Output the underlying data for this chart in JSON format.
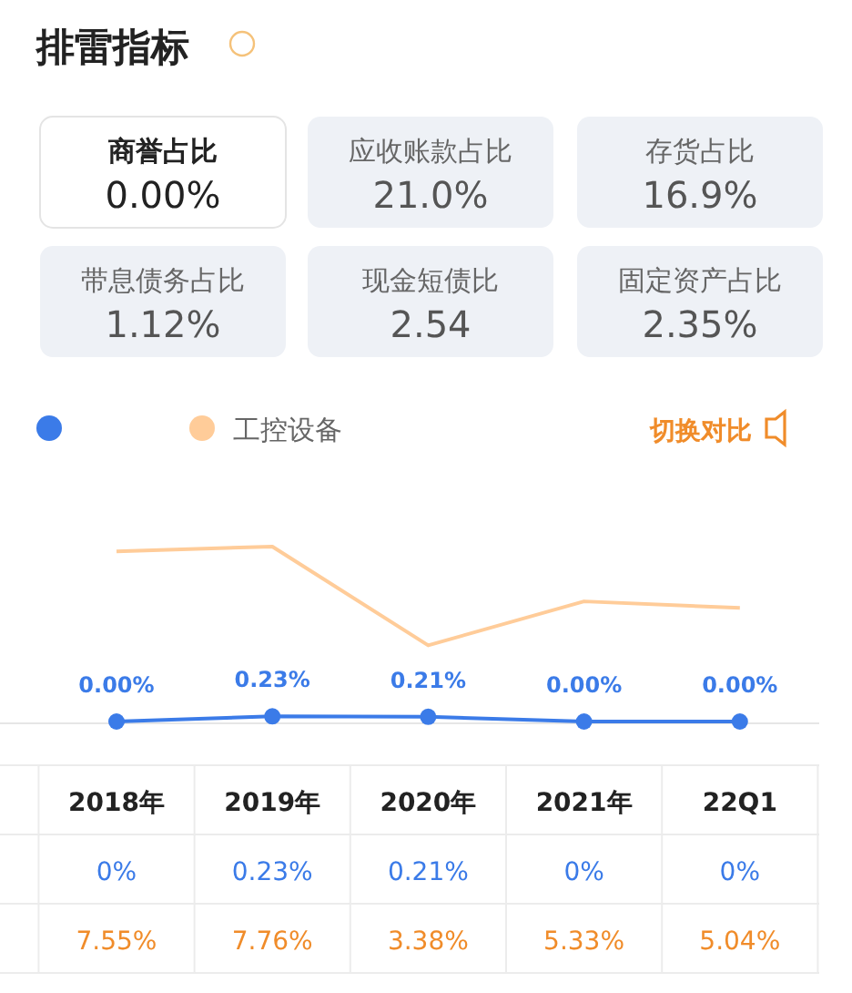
{
  "chart_data": [
    {
      "type": "other",
      "title": "排雷指标",
      "categories": [
        "商誉占比",
        "应收账款占比",
        "存货占比",
        "带息债务占比",
        "现金短债比",
        "固定资产占比"
      ],
      "annotations": [
        "0.00%",
        "21.0%",
        "16.9%",
        "1.12%",
        "2.54",
        "2.35%"
      ]
    },
    {
      "type": "line",
      "categories": [
        "2018年",
        "2019年",
        "2020年",
        "2021年",
        "22Q1"
      ],
      "series": [
        {
          "color": "#3b7be8",
          "marker": "circle",
          "values": [
            0,
            0.23,
            0.21,
            0,
            0
          ],
          "value_labels": [
            "0.00%",
            "0.23%",
            "0.21%",
            "0.00%",
            "0.00%"
          ]
        },
        {
          "name": "工控设备",
          "color": "#ffcc99",
          "values": [
            7.55,
            7.76,
            3.38,
            5.33,
            5.04
          ],
          "value_labels": [
            "7.55%",
            "7.76%",
            "3.38%",
            "5.33%",
            "5.04%"
          ]
        }
      ],
      "legend": "top left",
      "annotations": [
        "切换对比",
        "0%",
        "0.23%",
        "0.21%",
        "0%",
        "0%"
      ]
    }
  ]
}
